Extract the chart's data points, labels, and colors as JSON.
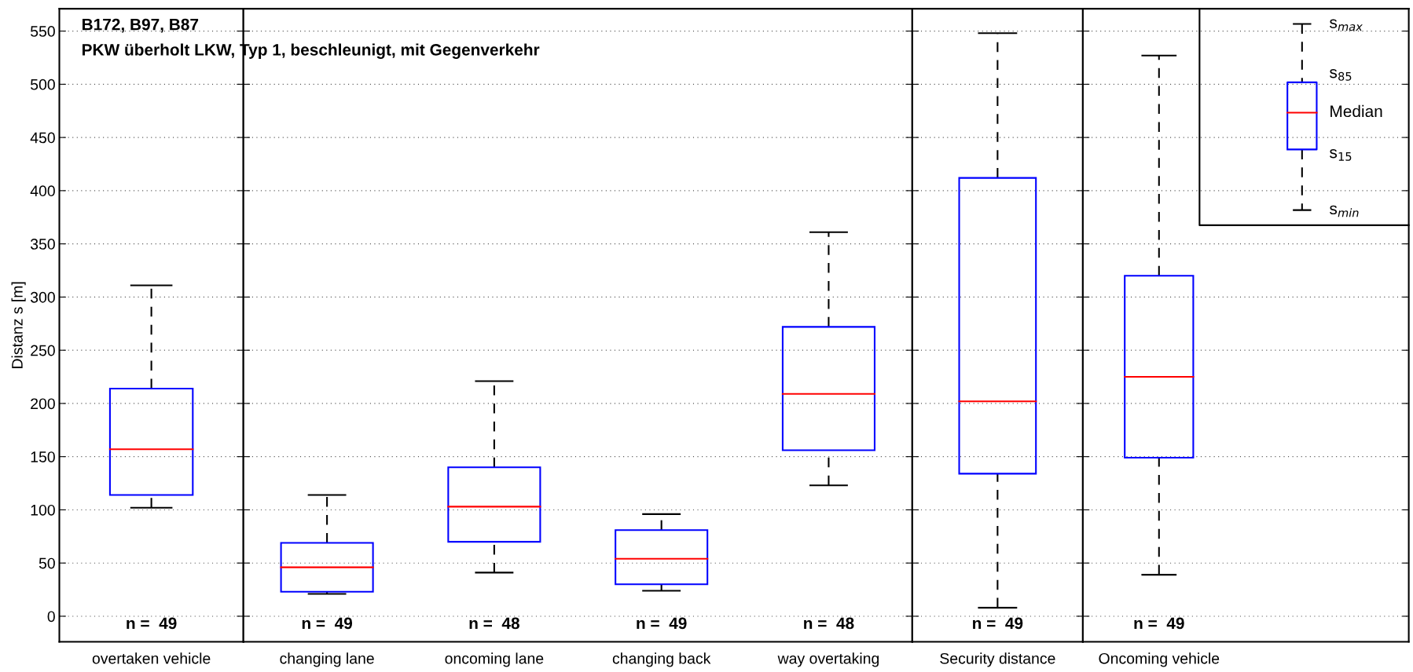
{
  "chart_data": [
    {
      "type": "box",
      "title": "B172, B97, B87",
      "subtitle": "PKW überholt LKW, Typ 1, beschleunigt, mit Gegenverkehr",
      "ylabel": "Distanz s [m]",
      "categories": [
        "overtaken vehicle"
      ],
      "series": [
        {
          "color": "#0000ff",
          "boxes": [
            {
              "low": 102,
              "q1": 114,
              "median": 157,
              "q3": 214,
              "high": 311
            }
          ]
        }
      ],
      "ylim": [
        -24,
        571
      ],
      "yticks": [
        0,
        50,
        100,
        150,
        200,
        250,
        300,
        350,
        400,
        450,
        500,
        550
      ],
      "grid": "y",
      "annotations": [
        "n =  49"
      ]
    },
    {
      "type": "box",
      "categories": [
        "changing lane",
        "oncoming lane",
        "changing back",
        "way overtaking"
      ],
      "series": [
        {
          "color": "#0000ff",
          "boxes": [
            {
              "low": 21,
              "q1": 23,
              "median": 46,
              "q3": 69,
              "high": 114
            },
            {
              "low": 41,
              "q1": 70,
              "median": 103,
              "q3": 140,
              "high": 221
            },
            {
              "low": 24,
              "q1": 30,
              "median": 54,
              "q3": 81,
              "high": 96
            },
            {
              "low": 123,
              "q1": 156,
              "median": 209,
              "q3": 272,
              "high": 361
            }
          ]
        }
      ],
      "ylim": [
        -24,
        571
      ],
      "yticks": [
        0,
        50,
        100,
        150,
        200,
        250,
        300,
        350,
        400,
        450,
        500,
        550
      ],
      "grid": "y",
      "tick_labels": "x",
      "annotations": [
        "n =  49",
        "n =  48",
        "n =  49",
        "n =  48"
      ]
    },
    {
      "type": "box",
      "categories": [
        "Security distance"
      ],
      "series": [
        {
          "color": "#0000ff",
          "boxes": [
            {
              "low": 8,
              "q1": 134,
              "median": 202,
              "q3": 412,
              "high": 548
            }
          ]
        }
      ],
      "ylim": [
        -24,
        571
      ],
      "yticks": [
        0,
        50,
        100,
        150,
        200,
        250,
        300,
        350,
        400,
        450,
        500,
        550
      ],
      "grid": "y",
      "tick_labels": "x",
      "annotations": [
        "n =  49"
      ]
    },
    {
      "type": "box",
      "categories": [
        "Oncoming vehicle"
      ],
      "series": [
        {
          "color": "#0000ff",
          "boxes": [
            {
              "low": 39,
              "q1": 149,
              "median": 225,
              "q3": 320,
              "high": 527
            }
          ]
        }
      ],
      "ylim": [
        -24,
        571
      ],
      "yticks": [
        0,
        50,
        100,
        150,
        200,
        250,
        300,
        350,
        400,
        450,
        500,
        550
      ],
      "grid": "y",
      "tick_labels": "x",
      "annotations": [
        "n =  49",
        "s$_{max}$",
        "s$_{85}$",
        "Median",
        "s$_{15}$",
        "s$_{min}$"
      ]
    }
  ]
}
